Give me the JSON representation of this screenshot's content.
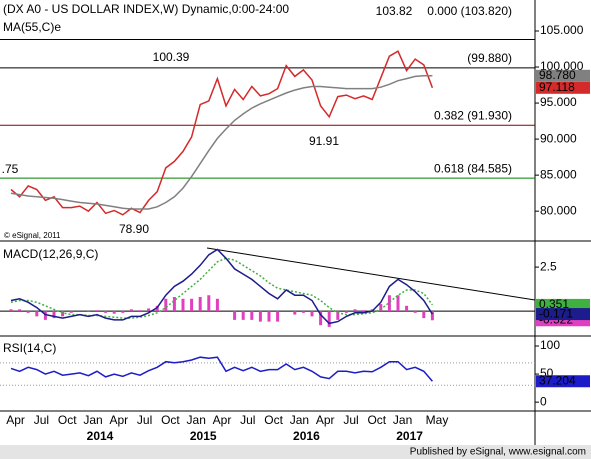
{
  "chart_data": [
    {
      "type": "line",
      "title": "(DX A0 - US DOLLAR INDEX,W) Dynamic,0:00-24:00",
      "ylim": [
        76,
        109.3
      ],
      "yticks": [
        {
          "value": 105,
          "label": "105.000"
        },
        {
          "value": 100,
          "label": "100.000"
        },
        {
          "value": 95,
          "label": "95.000"
        },
        {
          "value": 90,
          "label": "90.000"
        },
        {
          "value": 85,
          "label": "85.000"
        },
        {
          "value": 80,
          "label": "80.000"
        }
      ],
      "series": [
        {
          "color": "#d42a2a",
          "values": [
            83,
            82,
            83.5,
            83,
            81.5,
            82,
            80.5,
            80.5,
            80.7,
            80.0,
            81.2,
            79.7,
            80.1,
            79.5,
            80.4,
            79.8,
            81.5,
            82.7,
            86,
            86.9,
            88.3,
            90.3,
            94.8,
            95.3,
            98.4,
            94.6,
            96.9,
            95.5,
            97.3,
            96.0,
            96.3,
            97.0,
            100.2,
            98.7,
            99.6,
            98.2,
            94.6,
            93.1,
            95.9,
            96.1,
            95.6,
            96.0,
            95.5,
            98.5,
            101.5,
            102.2,
            99.5,
            101.1,
            100.3,
            97.118,
            null
          ],
          "value_labels": [
            null,
            null,
            null,
            null,
            null,
            null,
            null,
            null,
            null,
            null,
            null,
            null,
            null,
            null,
            null,
            null,
            null,
            null,
            null,
            null,
            null,
            null,
            null,
            null,
            null,
            null,
            null,
            null,
            null,
            null,
            null,
            null,
            null,
            null,
            null,
            null,
            null,
            null,
            null,
            null,
            null,
            null,
            null,
            null,
            null,
            null,
            null,
            null,
            null,
            "97.118",
            null
          ]
        },
        {
          "name": "MA(55,C)e",
          "color": "#808080",
          "values": [
            82.5,
            82.3,
            82.1,
            82,
            81.9,
            81.8,
            81.6,
            81.4,
            81.2,
            81.1,
            81.0,
            80.8,
            80.6,
            80.4,
            80.3,
            80.3,
            80.3,
            80.6,
            81.2,
            82,
            83.2,
            84.8,
            86.6,
            88.4,
            90.1,
            91.4,
            92.6,
            93.5,
            94.3,
            94.9,
            95.4,
            95.9,
            96.4,
            96.8,
            97.1,
            97.3,
            97.3,
            97.2,
            97.1,
            97.0,
            97.0,
            97.0,
            97.0,
            97.2,
            97.6,
            98.1,
            98.4,
            98.7,
            98.8,
            98.78,
            null
          ],
          "value_labels": [
            null,
            null,
            null,
            null,
            null,
            null,
            null,
            null,
            null,
            null,
            null,
            null,
            null,
            null,
            null,
            null,
            null,
            null,
            null,
            null,
            null,
            null,
            null,
            null,
            null,
            null,
            null,
            null,
            null,
            null,
            null,
            null,
            null,
            null,
            null,
            null,
            null,
            null,
            null,
            null,
            null,
            null,
            null,
            null,
            null,
            null,
            null,
            null,
            null,
            "98.780",
            null
          ]
        }
      ],
      "levels": [
        {
          "value": 103.82,
          "label": "0.000 (103.820)",
          "color": "#000000"
        },
        {
          "value": 99.88,
          "label": "(99.880)",
          "color": "#000000"
        },
        {
          "value": 91.93,
          "label": "0.382 (91.930)",
          "color": "#8b0000"
        },
        {
          "value": 84.585,
          "label": "0.618 (84.585)",
          "color": "#008000"
        }
      ],
      "annotations": [
        "103.82",
        "100.39",
        "91.91",
        "78.90",
        ".75"
      ],
      "watermark": "© eSignal, 2011"
    },
    {
      "type": "macd",
      "title": "MACD(12,26,9,C)",
      "ylim": [
        -1.36,
        3.87
      ],
      "yticks": [
        2.5
      ],
      "zero_line": true,
      "series": [
        {
          "kind": "histogram",
          "color": "#e040c0",
          "values": [
            0.1,
            0.1,
            -0.1,
            -0.3,
            -0.5,
            -0.4,
            -0.3,
            -0.1,
            0,
            -0.05,
            0.05,
            -0.1,
            -0.15,
            -0.1,
            0.1,
            0.05,
            0.15,
            0.3,
            0.7,
            0.8,
            0.7,
            0.7,
            0.8,
            0.9,
            0.7,
            0,
            -0.5,
            -0.5,
            -0.5,
            -0.6,
            -0.6,
            -0.6,
            0,
            -0.2,
            -0.1,
            -0.3,
            -0.8,
            -0.9,
            -0.5,
            -0.1,
            0.1,
            0.05,
            0.1,
            0.4,
            0.9,
            0.9,
            0.3,
            -0.1,
            -0.4,
            -0.522,
            null
          ],
          "value_labels": [
            null,
            null,
            null,
            null,
            null,
            null,
            null,
            null,
            null,
            null,
            null,
            null,
            null,
            null,
            null,
            null,
            null,
            null,
            null,
            null,
            null,
            null,
            null,
            null,
            null,
            null,
            null,
            null,
            null,
            null,
            null,
            null,
            null,
            null,
            null,
            null,
            null,
            null,
            null,
            null,
            null,
            null,
            null,
            null,
            null,
            null,
            null,
            null,
            null,
            "-0.522",
            null
          ]
        },
        {
          "kind": "signal",
          "color": "#40b040",
          "values": [
            0.5,
            0.6,
            0.6,
            0.5,
            0.3,
            0.1,
            -0.1,
            -0.2,
            -0.2,
            -0.25,
            -0.25,
            -0.3,
            -0.35,
            -0.4,
            -0.4,
            -0.35,
            -0.25,
            -0.1,
            0.2,
            0.6,
            1.0,
            1.4,
            1.8,
            2.3,
            2.8,
            3.0,
            2.9,
            2.6,
            2.3,
            2.0,
            1.6,
            1.3,
            1.2,
            1.1,
            1.0,
            0.9,
            0.6,
            0.2,
            -0.1,
            -0.2,
            -0.2,
            -0.15,
            -0.1,
            0.1,
            0.5,
            0.9,
            1.2,
            1.2,
            1.0,
            0.351,
            null
          ],
          "value_labels": [
            null,
            null,
            null,
            null,
            null,
            null,
            null,
            null,
            null,
            null,
            null,
            null,
            null,
            null,
            null,
            null,
            null,
            null,
            null,
            null,
            null,
            null,
            null,
            null,
            null,
            null,
            null,
            null,
            null,
            null,
            null,
            null,
            null,
            null,
            null,
            null,
            null,
            null,
            null,
            null,
            null,
            null,
            null,
            null,
            null,
            null,
            null,
            null,
            null,
            "0.351",
            null
          ]
        },
        {
          "kind": "line",
          "color": "#1c1c8c",
          "values": [
            0.6,
            0.7,
            0.5,
            0.2,
            -0.2,
            -0.3,
            -0.4,
            -0.3,
            -0.2,
            -0.3,
            -0.2,
            -0.4,
            -0.5,
            -0.5,
            -0.3,
            -0.3,
            -0.1,
            0.2,
            0.9,
            1.4,
            1.7,
            2.1,
            2.6,
            3.2,
            3.5,
            3.0,
            2.4,
            2.1,
            1.8,
            1.4,
            1.0,
            0.7,
            1.2,
            0.9,
            0.9,
            0.6,
            -0.2,
            -0.7,
            -0.6,
            -0.3,
            -0.1,
            -0.1,
            0.0,
            0.5,
            1.4,
            1.8,
            1.5,
            1.1,
            0.6,
            -0.171,
            null
          ],
          "value_labels": [
            null,
            null,
            null,
            null,
            null,
            null,
            null,
            null,
            null,
            null,
            null,
            null,
            null,
            null,
            null,
            null,
            null,
            null,
            null,
            null,
            null,
            null,
            null,
            null,
            null,
            null,
            null,
            null,
            null,
            null,
            null,
            null,
            null,
            null,
            null,
            null,
            null,
            null,
            null,
            null,
            null,
            null,
            null,
            null,
            null,
            null,
            null,
            null,
            null,
            "-0.171",
            null
          ]
        }
      ]
    },
    {
      "type": "rsi",
      "title": "RSI(14,C)",
      "ylim": [
        -14,
        116
      ],
      "yticks": [
        100,
        50,
        0
      ],
      "reference_lines": [
        70,
        30
      ],
      "series": [
        {
          "color": "#1c1cc8",
          "values": [
            60,
            55,
            62,
            58,
            50,
            55,
            48,
            50,
            52,
            47,
            55,
            45,
            50,
            46,
            52,
            48,
            56,
            62,
            72,
            70,
            72,
            75,
            80,
            78,
            80,
            55,
            62,
            56,
            62,
            55,
            58,
            58,
            68,
            58,
            62,
            55,
            45,
            42,
            55,
            55,
            52,
            55,
            54,
            62,
            72,
            72,
            58,
            62,
            55,
            37.204,
            null
          ],
          "value_labels": [
            null,
            null,
            null,
            null,
            null,
            null,
            null,
            null,
            null,
            null,
            null,
            null,
            null,
            null,
            null,
            null,
            null,
            null,
            null,
            null,
            null,
            null,
            null,
            null,
            null,
            null,
            null,
            null,
            null,
            null,
            null,
            null,
            null,
            null,
            null,
            null,
            null,
            null,
            null,
            null,
            null,
            null,
            null,
            null,
            null,
            null,
            null,
            null,
            null,
            "37.204",
            null
          ]
        }
      ],
      "categories": [
        null,
        "Apr",
        null,
        null,
        "Jul",
        null,
        null,
        "Oct",
        null,
        null,
        "Jan",
        null,
        null,
        "Apr",
        null,
        null,
        "Jul",
        null,
        null,
        "Oct",
        null,
        null,
        "Jan",
        null,
        null,
        "Apr",
        null,
        null,
        "Jul",
        null,
        null,
        "Oct",
        null,
        null,
        "Jan",
        null,
        null,
        "Apr",
        null,
        null,
        "Jul",
        null,
        null,
        "Oct",
        null,
        null,
        "Jan",
        null,
        null,
        null,
        "May"
      ],
      "year_labels": [
        "2014",
        "2015",
        "2016",
        "2017"
      ]
    }
  ],
  "footer": "Published by eSignal, www.esignal.com"
}
